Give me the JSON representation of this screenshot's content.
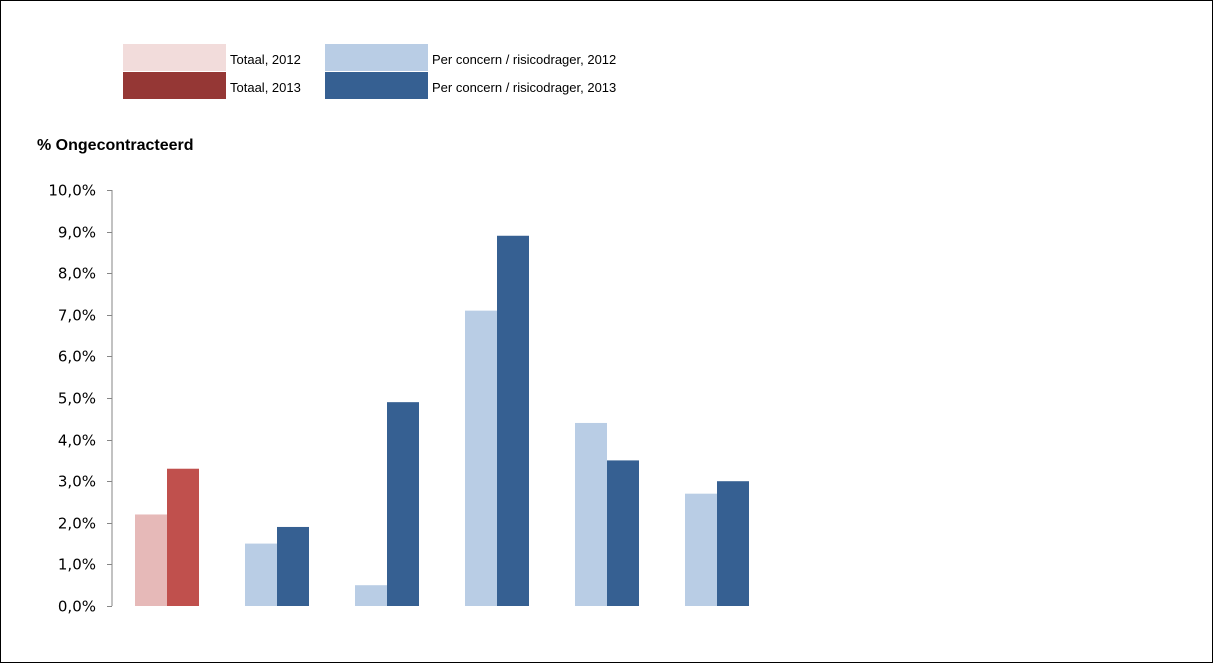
{
  "legend": {
    "items": [
      {
        "label": "Totaal, 2012",
        "color": "#f2dcdb"
      },
      {
        "label": "Totaal, 2013",
        "color": "#953735"
      },
      {
        "label": "Per concern / risicodrager, 2012",
        "color": "#b9cde5"
      },
      {
        "label": "Per concern / risicodrager, 2013",
        "color": "#366092"
      }
    ]
  },
  "chart_data": {
    "type": "bar",
    "ylabel": "% Ongecontracteerd",
    "xlabel": "",
    "ylim": [
      0,
      10
    ],
    "yticks": [
      0,
      1,
      2,
      3,
      4,
      5,
      6,
      7,
      8,
      9,
      10
    ],
    "ytick_labels": [
      "0,0%",
      "1,0%",
      "2,0%",
      "3,0%",
      "4,0%",
      "5,0%",
      "6,0%",
      "7,0%",
      "8,0%",
      "9,0%",
      "10,0%"
    ],
    "y_unit": "%",
    "grid": false,
    "legend_position": "top",
    "categories": [
      "",
      "",
      "",
      "",
      "",
      ""
    ],
    "series": [
      {
        "name": "2012",
        "values": [
          2.2,
          1.5,
          0.5,
          7.1,
          4.4,
          2.7
        ],
        "colors": [
          "#e6b9b8",
          "#b9cde5",
          "#b9cde5",
          "#b9cde5",
          "#b9cde5",
          "#b9cde5"
        ]
      },
      {
        "name": "2013",
        "values": [
          3.3,
          1.9,
          4.9,
          8.9,
          3.5,
          3.0
        ],
        "colors": [
          "#c0504d",
          "#366092",
          "#366092",
          "#366092",
          "#366092",
          "#366092"
        ]
      }
    ]
  }
}
